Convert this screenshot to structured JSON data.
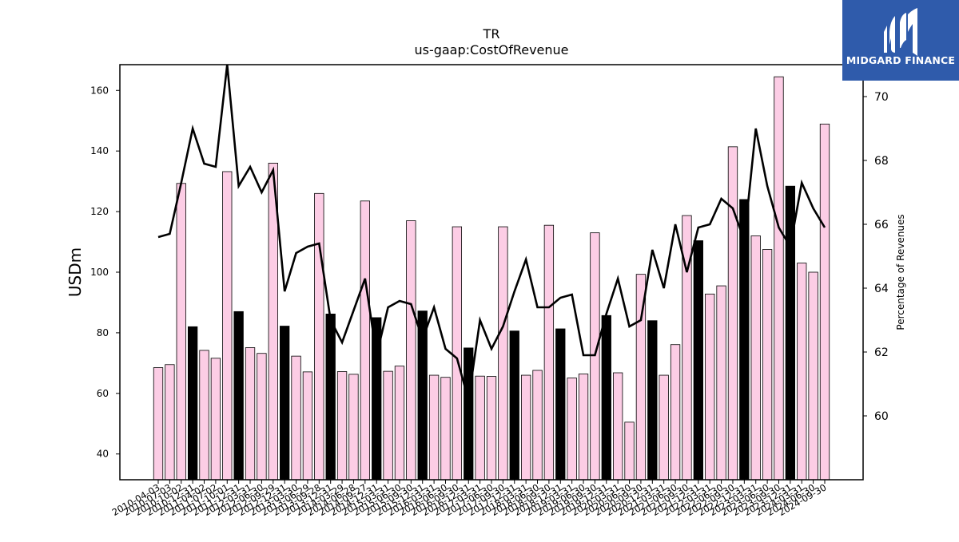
{
  "chart_data": {
    "type": "bar",
    "title": "TR",
    "subtitle": "us-gaap:CostOfRevenue",
    "ylabel": "USDm",
    "y2label": "Percentage of Revenues",
    "ylim": [
      31.5,
      168.5
    ],
    "y2lim": [
      58.0,
      71.0
    ],
    "yticks": [
      40,
      60,
      80,
      100,
      120,
      140,
      160
    ],
    "y2ticks": [
      60,
      62,
      64,
      66,
      68,
      70
    ],
    "bar_colors": {
      "quarter": "#fccde5",
      "annual": "#000000"
    },
    "line_color": "#000000",
    "x": [
      "2010-04-03",
      "2010-07-03",
      "2010-10-02",
      "2010-12-31",
      "2011-04-02",
      "2011-07-02",
      "2011-10-01",
      "2011-12-31",
      "2012-03-31",
      "2012-06-30",
      "2012-09-29",
      "2012-12-31",
      "2013-03-30",
      "2013-06-29",
      "2013-09-28",
      "2013-12-31",
      "2014-03-29",
      "2014-06-28",
      "2014-09-27",
      "2014-12-31",
      "2015-03-31",
      "2015-06-30",
      "2015-09-30",
      "2015-12-31",
      "2016-03-31",
      "2016-06-30",
      "2016-09-30",
      "2016-12-31",
      "2017-03-31",
      "2017-06-30",
      "2017-09-30",
      "2017-12-31",
      "2018-03-31",
      "2018-06-30",
      "2018-09-30",
      "2018-12-31",
      "2019-03-31",
      "2019-06-30",
      "2019-09-30",
      "2019-12-31",
      "2020-03-31",
      "2020-06-30",
      "2020-09-30",
      "2020-12-31",
      "2021-03-31",
      "2021-06-30",
      "2021-09-30",
      "2021-12-31",
      "2022-03-31",
      "2022-06-30",
      "2022-09-30",
      "2022-12-31",
      "2023-03-31",
      "2023-06-30",
      "2023-09-30",
      "2023-12-31",
      "2024-03-31",
      "2024-06-30",
      "2024-09-30"
    ],
    "values": [
      68.5,
      69.5,
      129.3,
      82,
      74.2,
      71.6,
      133.2,
      87,
      75.1,
      73.2,
      136,
      82.2,
      72.3,
      67.1,
      126,
      86.2,
      67.2,
      66.3,
      123.5,
      85,
      67.3,
      69,
      117,
      87.2,
      66,
      65.3,
      115,
      75,
      65.7,
      65.6,
      115,
      80.6,
      66,
      67.6,
      115.5,
      81.3,
      65.1,
      66.4,
      113,
      85.7,
      66.8,
      50.5,
      99.3,
      84,
      66,
      76.1,
      118.7,
      110.4,
      92.8,
      95.5,
      141.4,
      124,
      112,
      107.5,
      164.5,
      128.4,
      103,
      100,
      148.9
    ],
    "annual": [
      false,
      false,
      false,
      true,
      false,
      false,
      false,
      true,
      false,
      false,
      false,
      true,
      false,
      false,
      false,
      true,
      false,
      false,
      false,
      true,
      false,
      false,
      false,
      true,
      false,
      false,
      false,
      true,
      false,
      false,
      false,
      true,
      false,
      false,
      false,
      true,
      false,
      false,
      false,
      true,
      false,
      false,
      false,
      true,
      false,
      false,
      false,
      true,
      false,
      false,
      false,
      true,
      false,
      false,
      false,
      true,
      false,
      false,
      false
    ],
    "pct_of_revenue": [
      65.6,
      65.7,
      67.3,
      69,
      67.9,
      67.8,
      71.0,
      67.2,
      67.8,
      67.0,
      67.7,
      63.9,
      65.1,
      65.3,
      65.4,
      63.0,
      62.3,
      63.3,
      64.3,
      61.9,
      63.4,
      63.6,
      63.5,
      62.4,
      63.4,
      62.1,
      61.8,
      60.5,
      63.0,
      62.1,
      62.8,
      63.9,
      64.9,
      63.4,
      63.4,
      63.7,
      63.8,
      61.9,
      61.9,
      63.2,
      64.3,
      62.8,
      63.0,
      65.2,
      64.0,
      66.0,
      64.5,
      65.9,
      66.0,
      66.8,
      66.5,
      65.5,
      69.0,
      67.2,
      65.9,
      65.3,
      67.3,
      66.5,
      65.9
    ]
  },
  "logo": {
    "text": "MIDGARD FINANCE",
    "bg_color": "#2f5bab",
    "fg_color": "#ffffff"
  }
}
